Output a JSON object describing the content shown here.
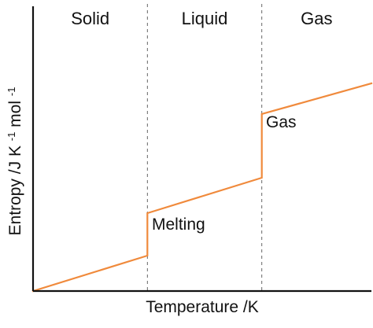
{
  "chart_data": {
    "type": "line",
    "title": "",
    "xlabel": "Temperature /K",
    "ylabel": {
      "base": "Entropy /J K",
      "sup": "-1",
      "tail": " mol",
      "sup2": "-1"
    },
    "phases": [
      "Solid",
      "Liquid",
      "Gas"
    ],
    "annotations": {
      "melting": "Melting",
      "gas": "Gas"
    },
    "grid": false,
    "legend": "none",
    "xlim": [
      0,
      100
    ],
    "ylim": [
      0,
      100
    ],
    "dividers_x": [
      33.8,
      67.6
    ],
    "series": [
      {
        "values": [
          [
            0,
            0
          ],
          [
            33.8,
            15
          ],
          [
            33.8,
            33
          ],
          [
            67.6,
            48
          ],
          [
            67.6,
            75
          ],
          [
            100,
            88
          ]
        ],
        "color": "#f08a3c"
      }
    ]
  }
}
